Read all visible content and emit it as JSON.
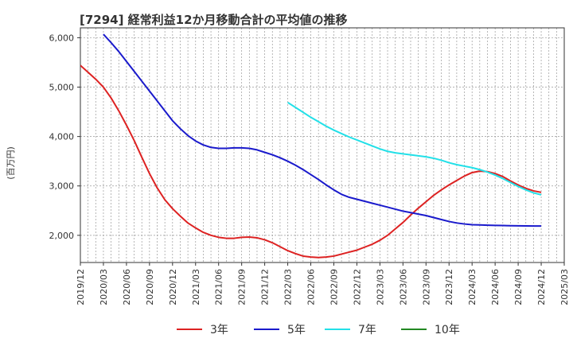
{
  "chart_data": {
    "type": "line",
    "title": "[7294]  経常利益12か月移動合計の平均値の推移",
    "ylabel": "(百万円)",
    "xlabel": "",
    "ylim": [
      1450,
      6200
    ],
    "yticks": [
      2000,
      3000,
      4000,
      5000,
      6000
    ],
    "ytick_labels": [
      "2,000",
      "3,000",
      "4,000",
      "5,000",
      "6,000"
    ],
    "x_range": [
      "2019-12",
      "2025-03"
    ],
    "x_tick_labels": [
      "2019/12",
      "2020/03",
      "2020/06",
      "2020/09",
      "2020/12",
      "2021/03",
      "2021/06",
      "2021/09",
      "2021/12",
      "2022/03",
      "2022/06",
      "2022/09",
      "2022/12",
      "2023/03",
      "2023/06",
      "2023/09",
      "2023/12",
      "2024/03",
      "2024/06",
      "2024/09",
      "2024/12",
      "2025/03"
    ],
    "grid": true,
    "legend_position": "bottom",
    "series": [
      {
        "name": "3年",
        "color": "#dd2222",
        "points": [
          [
            "2019-12",
            5440
          ],
          [
            "2020-01",
            5300
          ],
          [
            "2020-02",
            5160
          ],
          [
            "2020-03",
            5000
          ],
          [
            "2020-04",
            4780
          ],
          [
            "2020-05",
            4520
          ],
          [
            "2020-06",
            4230
          ],
          [
            "2020-07",
            3920
          ],
          [
            "2020-08",
            3580
          ],
          [
            "2020-09",
            3250
          ],
          [
            "2020-10",
            2960
          ],
          [
            "2020-11",
            2720
          ],
          [
            "2020-12",
            2540
          ],
          [
            "2020-01-fill",
            null
          ],
          [
            "2021-01",
            2390
          ],
          [
            "2021-02",
            2250
          ],
          [
            "2021-03",
            2150
          ],
          [
            "2021-04",
            2060
          ],
          [
            "2021-05",
            2000
          ],
          [
            "2021-06",
            1960
          ],
          [
            "2021-07",
            1940
          ],
          [
            "2021-08",
            1940
          ],
          [
            "2021-09",
            1960
          ],
          [
            "2021-10",
            1965
          ],
          [
            "2021-11",
            1950
          ],
          [
            "2021-12",
            1910
          ],
          [
            "2022-01",
            1850
          ],
          [
            "2022-02",
            1770
          ],
          [
            "2022-03",
            1690
          ],
          [
            "2022-04",
            1630
          ],
          [
            "2022-05",
            1580
          ],
          [
            "2022-06",
            1560
          ],
          [
            "2022-07",
            1550
          ],
          [
            "2022-08",
            1560
          ],
          [
            "2022-09",
            1580
          ],
          [
            "2022-10",
            1620
          ],
          [
            "2022-11",
            1660
          ],
          [
            "2022-12",
            1700
          ],
          [
            "2023-01",
            1760
          ],
          [
            "2023-02",
            1820
          ],
          [
            "2023-03",
            1900
          ],
          [
            "2023-04",
            2000
          ],
          [
            "2023-05",
            2130
          ],
          [
            "2023-06",
            2260
          ],
          [
            "2023-07",
            2410
          ],
          [
            "2023-08",
            2550
          ],
          [
            "2023-09",
            2680
          ],
          [
            "2023-10",
            2810
          ],
          [
            "2023-11",
            2920
          ],
          [
            "2023-12",
            3020
          ],
          [
            "2024-01",
            3110
          ],
          [
            "2024-02",
            3200
          ],
          [
            "2024-03",
            3270
          ],
          [
            "2024-04",
            3300
          ],
          [
            "2024-05",
            3290
          ],
          [
            "2024-06",
            3250
          ],
          [
            "2024-07",
            3190
          ],
          [
            "2024-08",
            3100
          ],
          [
            "2024-09",
            3020
          ],
          [
            "2024-10",
            2950
          ],
          [
            "2024-11",
            2900
          ],
          [
            "2024-12",
            2870
          ]
        ]
      },
      {
        "name": "5年",
        "color": "#1a1acc",
        "points": [
          [
            "2020-03",
            6070
          ],
          [
            "2020-04",
            5900
          ],
          [
            "2020-05",
            5720
          ],
          [
            "2020-06",
            5520
          ],
          [
            "2020-07",
            5320
          ],
          [
            "2020-08",
            5120
          ],
          [
            "2020-09",
            4920
          ],
          [
            "2020-10",
            4720
          ],
          [
            "2020-11",
            4520
          ],
          [
            "2020-12",
            4320
          ],
          [
            "2021-01",
            4160
          ],
          [
            "2021-02",
            4020
          ],
          [
            "2021-03",
            3910
          ],
          [
            "2021-04",
            3830
          ],
          [
            "2021-05",
            3780
          ],
          [
            "2021-06",
            3760
          ],
          [
            "2021-07",
            3760
          ],
          [
            "2021-08",
            3770
          ],
          [
            "2021-09",
            3770
          ],
          [
            "2021-10",
            3760
          ],
          [
            "2021-11",
            3730
          ],
          [
            "2021-12",
            3680
          ],
          [
            "2022-01",
            3630
          ],
          [
            "2022-02",
            3570
          ],
          [
            "2022-03",
            3500
          ],
          [
            "2022-04",
            3420
          ],
          [
            "2022-05",
            3330
          ],
          [
            "2022-06",
            3230
          ],
          [
            "2022-07",
            3130
          ],
          [
            "2022-08",
            3020
          ],
          [
            "2022-09",
            2920
          ],
          [
            "2022-10",
            2830
          ],
          [
            "2022-11",
            2770
          ],
          [
            "2022-12",
            2730
          ],
          [
            "2023-01",
            2690
          ],
          [
            "2023-02",
            2650
          ],
          [
            "2023-03",
            2610
          ],
          [
            "2023-04",
            2570
          ],
          [
            "2023-05",
            2530
          ],
          [
            "2023-06",
            2490
          ],
          [
            "2023-07",
            2460
          ],
          [
            "2023-08",
            2430
          ],
          [
            "2023-09",
            2400
          ],
          [
            "2023-10",
            2360
          ],
          [
            "2023-11",
            2320
          ],
          [
            "2023-12",
            2280
          ],
          [
            "2024-01",
            2250
          ],
          [
            "2024-02",
            2230
          ],
          [
            "2024-03",
            2215
          ],
          [
            "2024-04",
            2210
          ],
          [
            "2024-05",
            2205
          ],
          [
            "2024-06",
            2200
          ],
          [
            "2024-07",
            2198
          ],
          [
            "2024-08",
            2195
          ],
          [
            "2024-09",
            2192
          ],
          [
            "2024-10",
            2190
          ],
          [
            "2024-11",
            2188
          ],
          [
            "2024-12",
            2188
          ]
        ]
      },
      {
        "name": "7年",
        "color": "#22e0e8",
        "points": [
          [
            "2022-03",
            4690
          ],
          [
            "2022-04",
            4590
          ],
          [
            "2022-05",
            4490
          ],
          [
            "2022-06",
            4390
          ],
          [
            "2022-07",
            4300
          ],
          [
            "2022-08",
            4210
          ],
          [
            "2022-09",
            4130
          ],
          [
            "2022-10",
            4060
          ],
          [
            "2022-11",
            3990
          ],
          [
            "2022-12",
            3930
          ],
          [
            "2023-01",
            3870
          ],
          [
            "2023-02",
            3810
          ],
          [
            "2023-03",
            3750
          ],
          [
            "2023-04",
            3700
          ],
          [
            "2023-05",
            3670
          ],
          [
            "2023-06",
            3650
          ],
          [
            "2023-07",
            3630
          ],
          [
            "2023-08",
            3610
          ],
          [
            "2023-09",
            3590
          ],
          [
            "2023-10",
            3560
          ],
          [
            "2023-11",
            3520
          ],
          [
            "2023-12",
            3470
          ],
          [
            "2024-01",
            3430
          ],
          [
            "2024-02",
            3400
          ],
          [
            "2024-03",
            3370
          ],
          [
            "2024-04",
            3330
          ],
          [
            "2024-05",
            3280
          ],
          [
            "2024-06",
            3220
          ],
          [
            "2024-07",
            3150
          ],
          [
            "2024-08",
            3070
          ],
          [
            "2024-09",
            2990
          ],
          [
            "2024-10",
            2920
          ],
          [
            "2024-11",
            2860
          ],
          [
            "2024-12",
            2820
          ]
        ]
      },
      {
        "name": "10年",
        "color": "#228822",
        "points": []
      }
    ]
  }
}
